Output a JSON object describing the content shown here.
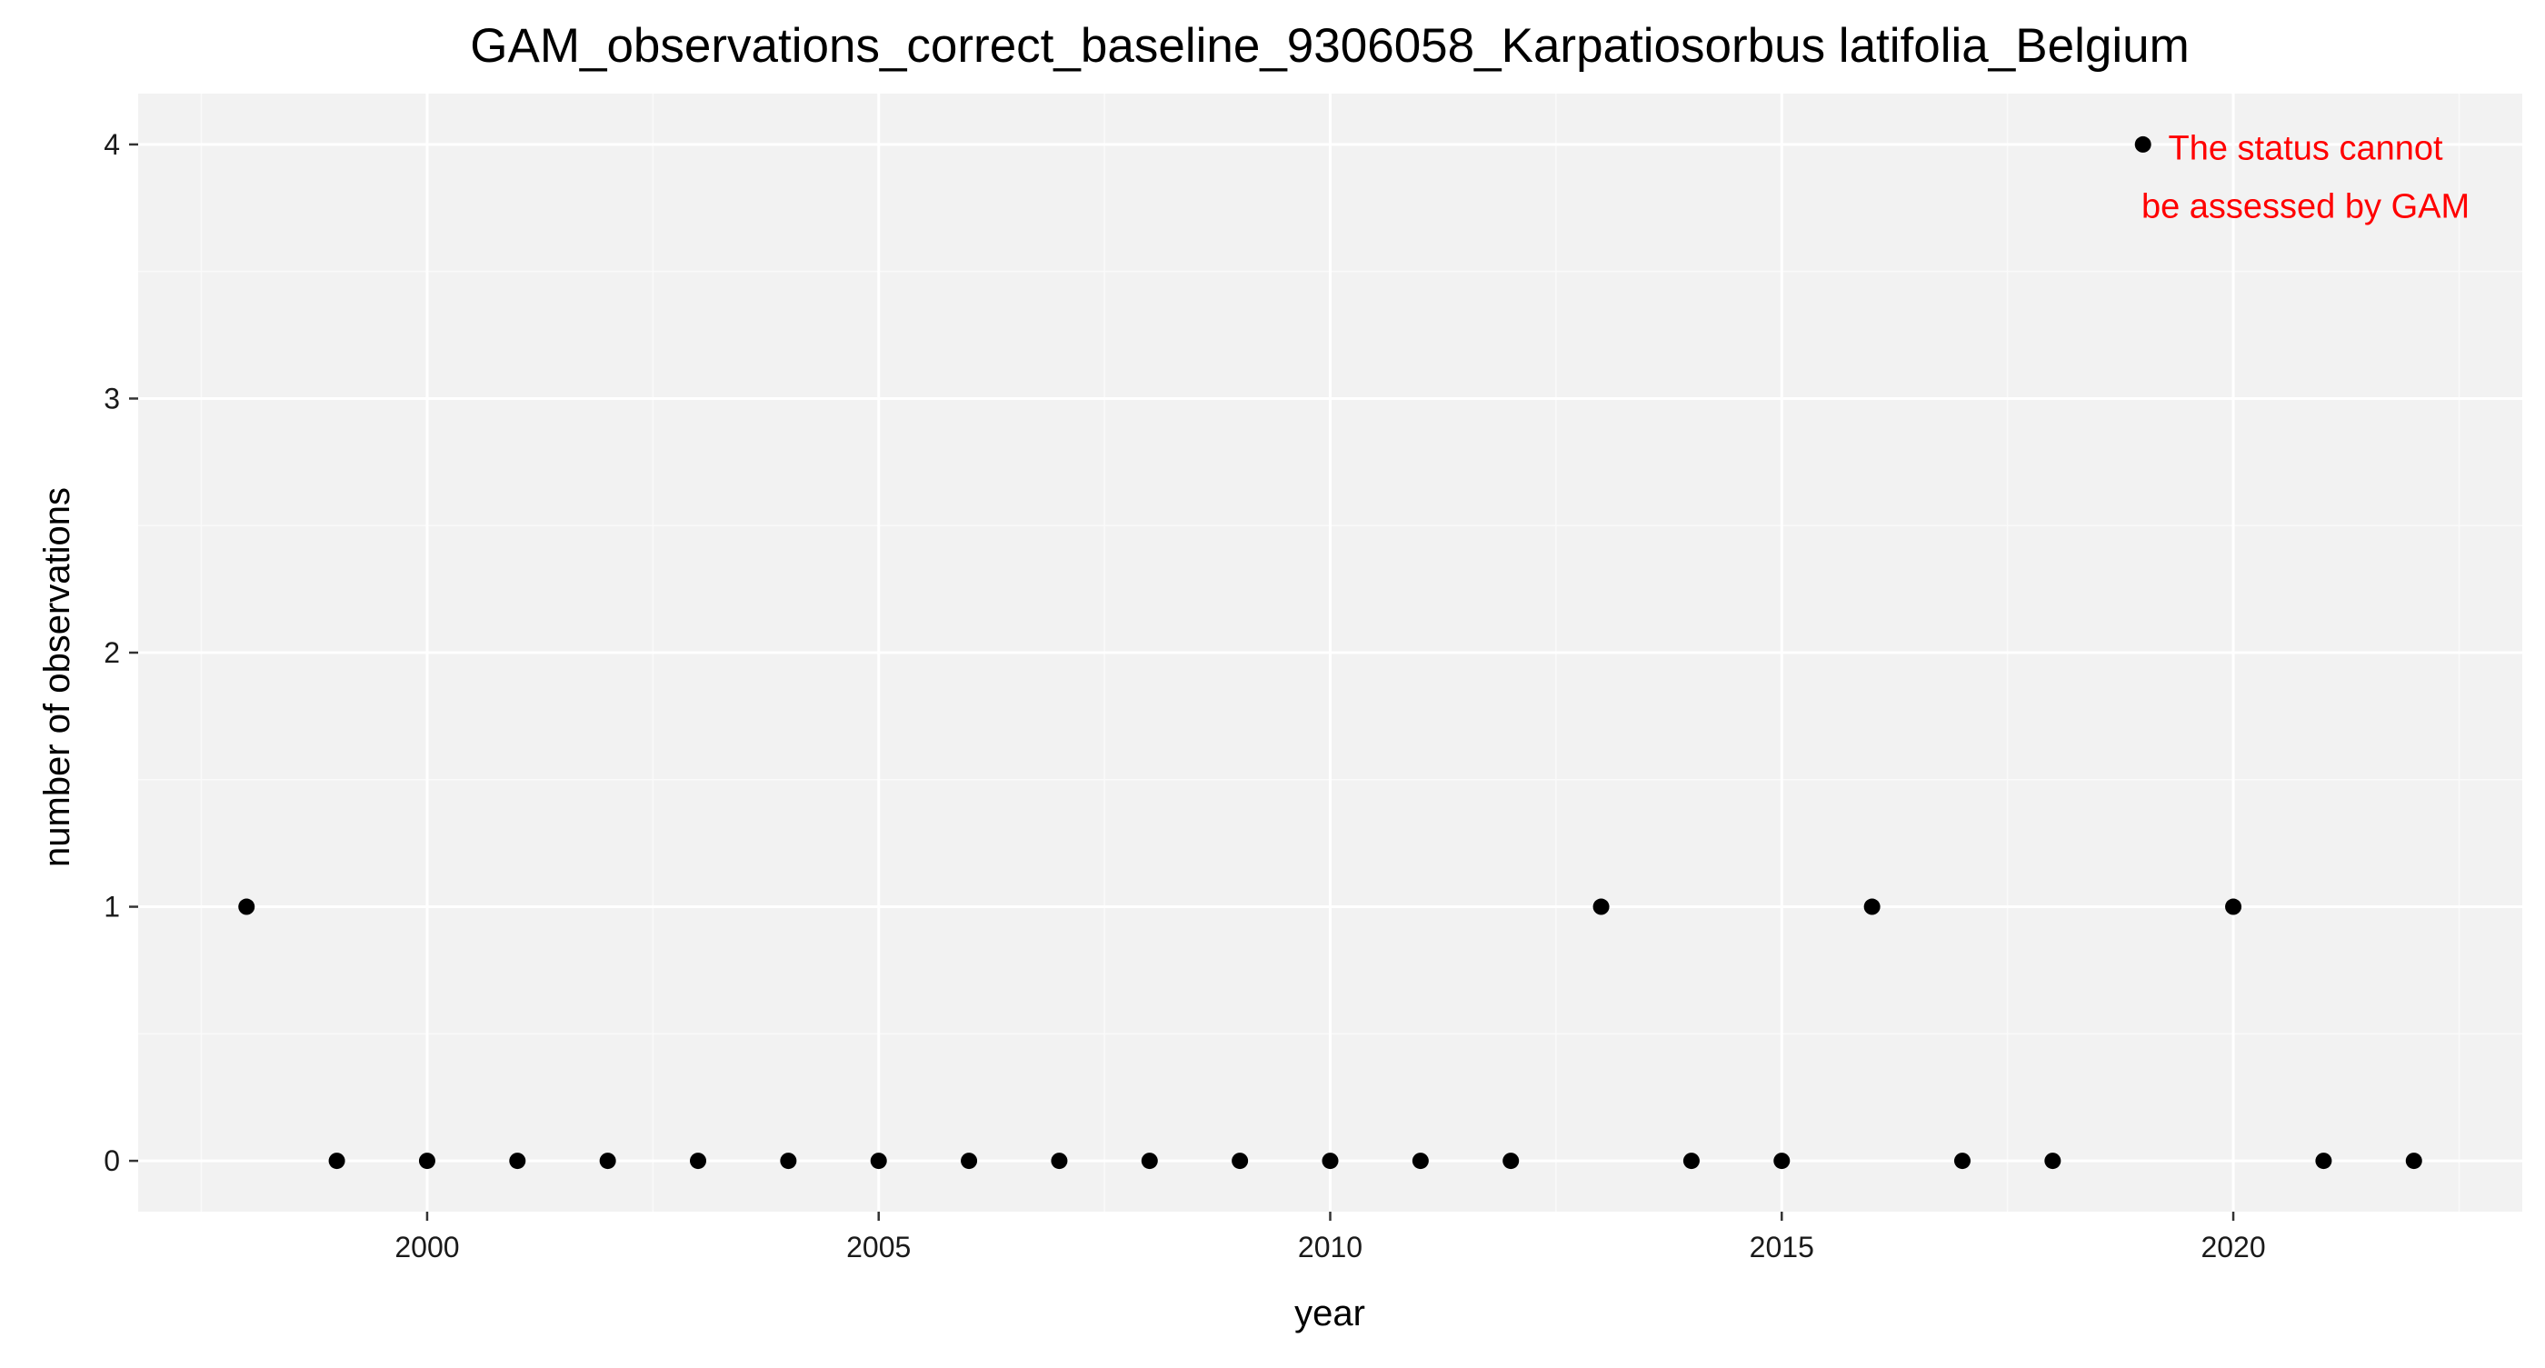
{
  "chart_data": {
    "type": "scatter",
    "title": "GAM_observations_correct_baseline_9306058_Karpatiosorbus latifolia_Belgium",
    "xlabel": "year",
    "ylabel": "number of observations",
    "x": [
      1998,
      1999,
      2000,
      2001,
      2002,
      2003,
      2004,
      2005,
      2006,
      2007,
      2008,
      2009,
      2010,
      2011,
      2012,
      2013,
      2014,
      2015,
      2016,
      2017,
      2018,
      2019,
      2020,
      2021,
      2022
    ],
    "y": [
      1,
      0,
      0,
      0,
      0,
      0,
      0,
      0,
      0,
      0,
      0,
      0,
      0,
      0,
      0,
      1,
      0,
      0,
      1,
      0,
      0,
      4,
      1,
      0,
      0
    ],
    "xlim": [
      1996.8,
      2023.2
    ],
    "ylim": [
      -0.2,
      4.2
    ],
    "x_ticks": [
      2000,
      2005,
      2010,
      2015,
      2020
    ],
    "x_tick_labels": [
      "2000",
      "2005",
      "2010",
      "2015",
      "2020"
    ],
    "y_ticks": [
      0,
      1,
      2,
      3,
      4
    ],
    "y_tick_labels": [
      "0",
      "1",
      "2",
      "3",
      "4"
    ],
    "annotation": {
      "lines": [
        "The status cannot",
        "be assessed by GAM"
      ],
      "x": 2020.8,
      "y": 3.87,
      "color": "#ff0000"
    },
    "grid": true,
    "legend": "none",
    "colors": {
      "panel_background": "#f2f2f2",
      "grid_major": "#ffffff",
      "grid_minor": "#fafafa",
      "points": "#000000"
    }
  }
}
